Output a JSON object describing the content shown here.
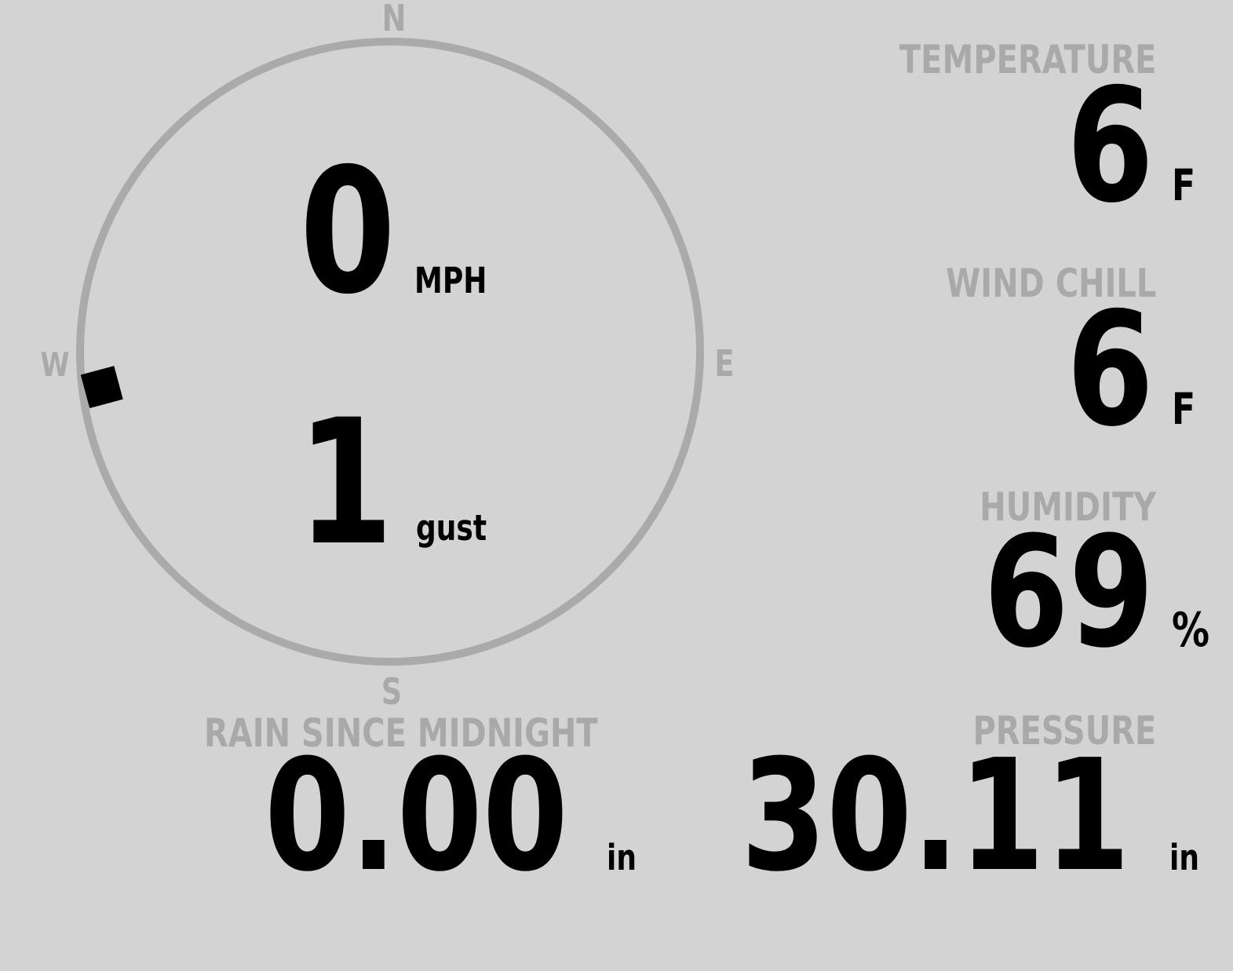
{
  "colors": {
    "background": "#d3d3d3",
    "label": "#a9a9a9",
    "value": "#000000",
    "compass_ring": "#aaaaaa"
  },
  "compass": {
    "north": "N",
    "east": "E",
    "south": "S",
    "west": "W",
    "wind_direction_deg": 263
  },
  "wind": {
    "speed": "0",
    "speed_unit": "MPH",
    "gust": "1",
    "gust_unit": "gust"
  },
  "temperature": {
    "label": "TEMPERATURE",
    "value": "6",
    "unit": "F"
  },
  "wind_chill": {
    "label": "WIND CHILL",
    "value": "6",
    "unit": "F"
  },
  "humidity": {
    "label": "HUMIDITY",
    "value": "69",
    "unit": "%"
  },
  "rain": {
    "label": "RAIN SINCE MIDNIGHT",
    "value": "0.00",
    "unit": "in"
  },
  "pressure": {
    "label": "PRESSURE",
    "value": "30.11",
    "unit": "in"
  }
}
